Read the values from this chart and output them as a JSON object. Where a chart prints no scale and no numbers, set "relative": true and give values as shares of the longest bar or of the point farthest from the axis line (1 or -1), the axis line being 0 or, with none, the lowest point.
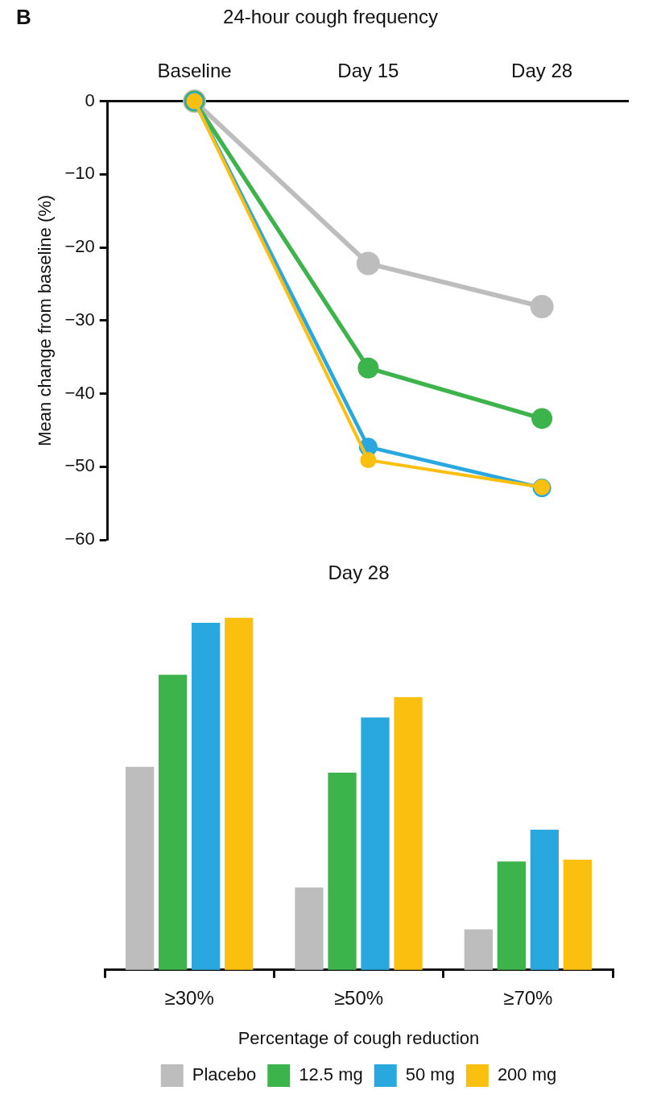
{
  "chart_data": [
    {
      "type": "line",
      "title": "24-hour cough frequency",
      "ylabel": "Mean change from baseline (%)",
      "annotations": [
        "B"
      ],
      "categories": [
        "Baseline",
        "Day 15",
        "Day 28"
      ],
      "series": [
        {
          "color": "#bdbdbd",
          "values": [
            0,
            -22.2,
            -28.1
          ]
        },
        {
          "color": "#3cb44b",
          "values": [
            0,
            -36.5,
            -43.4
          ]
        },
        {
          "color": "#29a8e0",
          "values": [
            0,
            -47.3,
            -52.9
          ]
        },
        {
          "color": "#fbbf0f",
          "values": [
            0,
            -49.1,
            -52.8
          ]
        }
      ],
      "ylim": [
        -60,
        0
      ],
      "yticks": [
        0,
        {
          "value": -10,
          "label": "−10"
        },
        {
          "value": -20,
          "label": "−20"
        },
        {
          "value": -30,
          "label": "−30"
        },
        {
          "value": -40,
          "label": "−40"
        },
        {
          "value": -50,
          "label": "−50"
        },
        {
          "value": -60,
          "label": "−60"
        }
      ],
      "marker": "circle",
      "grid": false,
      "legend": false
    },
    {
      "type": "bar",
      "title": "Day 28",
      "xlabel": "Percentage of cough reduction",
      "relative": true,
      "categories": [
        "≥30%",
        "≥50%",
        "≥70%"
      ],
      "series": [
        {
          "name": "Placebo",
          "color": "#bdbdbd",
          "values": [
            0.577,
            0.234,
            0.115
          ]
        },
        {
          "name": "12.5 mg",
          "color": "#3cb44b",
          "values": [
            0.838,
            0.56,
            0.308
          ]
        },
        {
          "name": "50 mg",
          "color": "#29a8e0",
          "values": [
            0.986,
            0.717,
            0.398
          ]
        },
        {
          "name": "200 mg",
          "color": "#fbbf0f",
          "values": [
            1,
            0.775,
            0.313
          ]
        }
      ],
      "grid": false,
      "legend": "bottom"
    }
  ]
}
